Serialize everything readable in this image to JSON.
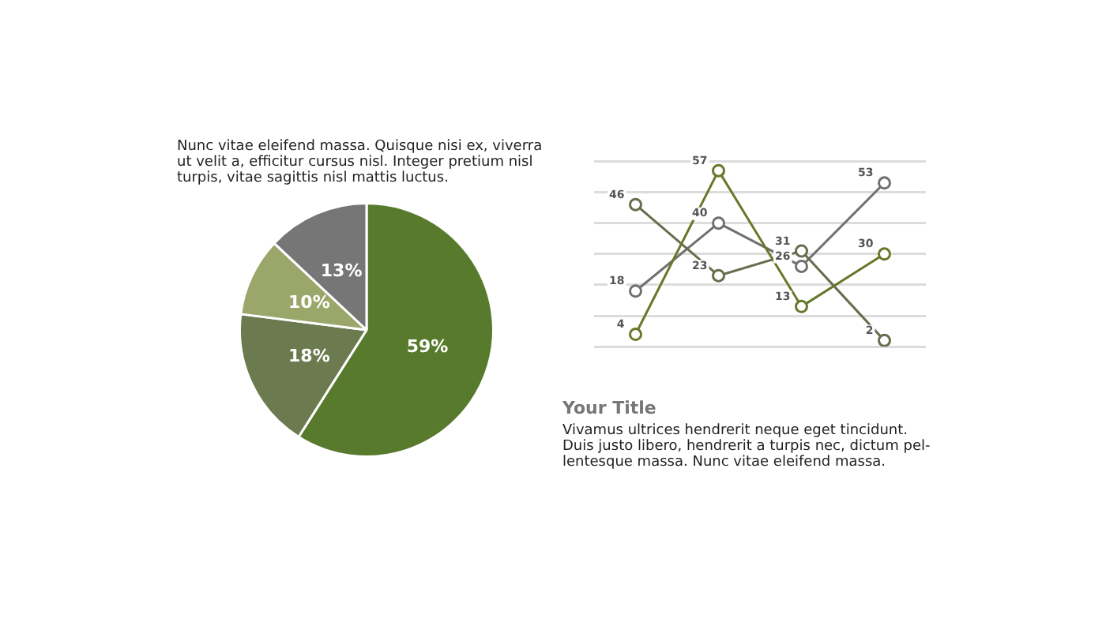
{
  "chart_data": [
    {
      "type": "pie",
      "title": "Nunc vitae eleifend massa. Quisque nisi ex, viverra ut velit a, efficitur cursus nisl. Integer pretium nisl turpis, vitae sagittis nisl mattis luctus.",
      "categories": [
        null,
        null,
        null,
        null
      ],
      "values": [
        59,
        18,
        10,
        13
      ],
      "colors": [
        "#587a2c",
        "#6c7a4f",
        "#9aa66a",
        "#767676"
      ],
      "value_labels": [
        "59%",
        "18%",
        "10%",
        "13%"
      ],
      "legend": false
    },
    {
      "type": "line",
      "title": "Your Title",
      "subtitle": "Vivamus ultrices hendrerit neque eget tincidunt. Duis justo libero, hendrerit a turpis nec, dictum pel-lentesque massa. Nunc vitae eleifend massa.",
      "categories": [
        null,
        null,
        null,
        null
      ],
      "series": [
        {
          "color": "#66782a",
          "values": [
            4,
            57,
            13,
            30
          ]
        },
        {
          "color": "#6b6b4e",
          "values": [
            46,
            23,
            31,
            2
          ]
        },
        {
          "color": "#707070",
          "values": [
            18,
            40,
            26,
            53
          ]
        }
      ],
      "yticks": [
        {
          "value": 0,
          "label": null
        },
        {
          "value": 10,
          "label": null
        },
        {
          "value": 20,
          "label": null
        },
        {
          "value": 30,
          "label": null
        },
        {
          "value": 40,
          "label": null
        },
        {
          "value": 50,
          "label": null
        },
        {
          "value": 60,
          "label": null
        }
      ],
      "grid": "y",
      "marker": "circle",
      "line_style": "solid",
      "data_labels": true,
      "legend": false
    }
  ]
}
